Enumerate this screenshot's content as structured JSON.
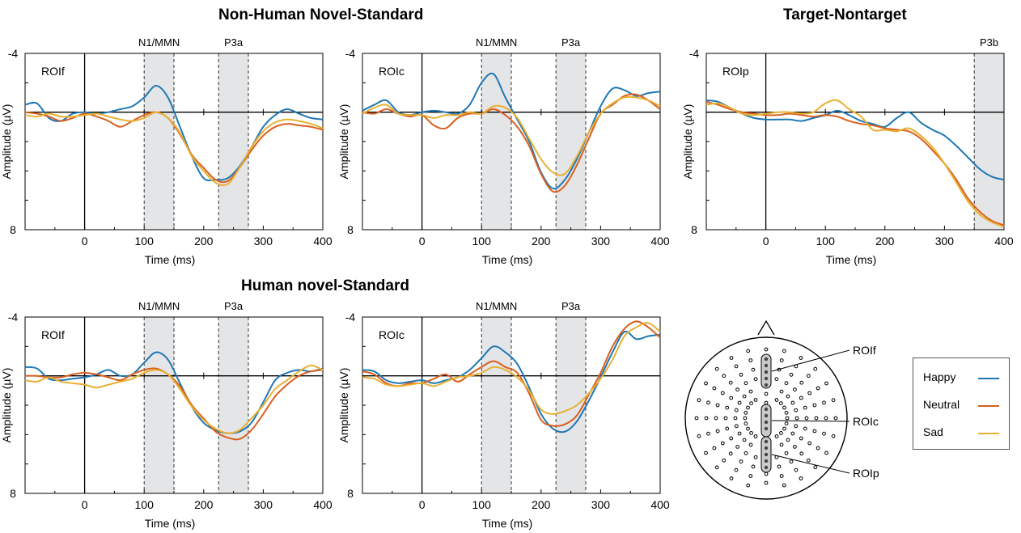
{
  "titles": {
    "nonhuman": "Non-Human Novel-Standard",
    "target": "Target-Nontarget",
    "human": "Human novel-Standard"
  },
  "colors": {
    "Happy": "#1f77b4",
    "Neutral": "#d95f1f",
    "Sad": "#e8b032"
  },
  "legend": [
    {
      "label": "Happy",
      "color": "#1f77b4"
    },
    {
      "label": "Neutral",
      "color": "#d95f1f"
    },
    {
      "label": "Sad",
      "color": "#e8b032"
    }
  ],
  "head": {
    "labels": [
      "ROIf",
      "ROIc",
      "ROIp"
    ]
  },
  "chart_data": [
    {
      "type": "line",
      "group": "Non-Human Novel-Standard",
      "panel_label": "ROIf",
      "xlabel": "Time (ms)",
      "ylabel": "Amplitude (µV)",
      "xlim": [
        -100,
        400
      ],
      "ylim": [
        -4,
        8
      ],
      "y_inverted": true,
      "xticks": [
        "0",
        "100",
        "200",
        "300",
        "400"
      ],
      "yticks": [
        "-4",
        "8"
      ],
      "windows": [
        {
          "label": "N1/MMN",
          "range": [
            100,
            150
          ]
        },
        {
          "label": "P3a",
          "range": [
            225,
            275
          ]
        }
      ],
      "x": [
        -100,
        -80,
        -60,
        -40,
        -20,
        0,
        20,
        40,
        60,
        80,
        100,
        120,
        140,
        160,
        180,
        200,
        220,
        240,
        260,
        280,
        300,
        320,
        340,
        360,
        380,
        400
      ],
      "series": [
        {
          "name": "Happy",
          "values": [
            -0.5,
            -0.6,
            0.4,
            0.6,
            0.1,
            0.0,
            0.1,
            0.0,
            -0.2,
            -0.4,
            -1.0,
            -1.8,
            -1.0,
            1.0,
            3.0,
            4.5,
            4.6,
            4.5,
            3.7,
            2.4,
            1.0,
            0.2,
            -0.2,
            0.1,
            0.4,
            0.5
          ]
        },
        {
          "name": "Neutral",
          "values": [
            0.0,
            0.1,
            0.3,
            0.6,
            0.4,
            0.1,
            0.3,
            0.6,
            1.0,
            0.6,
            0.2,
            0.0,
            0.4,
            1.5,
            2.9,
            3.8,
            4.6,
            4.7,
            3.8,
            2.6,
            1.6,
            1.0,
            0.8,
            0.9,
            1.0,
            1.2
          ]
        },
        {
          "name": "Sad",
          "values": [
            0.2,
            0.3,
            0.1,
            0.3,
            0.3,
            0.2,
            0.1,
            0.3,
            0.5,
            0.6,
            0.4,
            0.0,
            0.4,
            1.4,
            3.0,
            4.0,
            4.8,
            4.9,
            3.8,
            2.4,
            1.3,
            0.7,
            0.5,
            0.6,
            0.8,
            1.1
          ]
        }
      ]
    },
    {
      "type": "line",
      "group": "Non-Human Novel-Standard",
      "panel_label": "ROIc",
      "xlabel": "Time (ms)",
      "ylabel": "Amplitude (µV)",
      "xlim": [
        -100,
        400
      ],
      "ylim": [
        -4,
        8
      ],
      "y_inverted": true,
      "xticks": [
        "0",
        "100",
        "200",
        "300",
        "400"
      ],
      "yticks": [
        "-4",
        "8"
      ],
      "windows": [
        {
          "label": "N1/MMN",
          "range": [
            100,
            150
          ]
        },
        {
          "label": "P3a",
          "range": [
            225,
            275
          ]
        }
      ],
      "x": [
        -100,
        -80,
        -60,
        -40,
        -20,
        0,
        20,
        40,
        60,
        80,
        100,
        120,
        140,
        160,
        180,
        200,
        220,
        240,
        260,
        280,
        300,
        320,
        340,
        360,
        380,
        400
      ],
      "series": [
        {
          "name": "Happy",
          "values": [
            -0.1,
            -0.5,
            -0.8,
            0.0,
            0.2,
            0.0,
            -0.1,
            0.0,
            0.1,
            -0.5,
            -2.0,
            -2.6,
            -1.0,
            0.5,
            2.0,
            4.1,
            5.2,
            4.6,
            3.2,
            1.4,
            -0.4,
            -1.6,
            -1.5,
            -1.1,
            -1.3,
            -1.4
          ]
        },
        {
          "name": "Neutral",
          "values": [
            0.0,
            0.1,
            -0.2,
            0.1,
            0.3,
            0.2,
            0.9,
            1.1,
            0.4,
            0.1,
            0.1,
            -0.2,
            0.2,
            1.0,
            2.3,
            4.2,
            5.4,
            5.0,
            3.6,
            1.8,
            0.1,
            -0.5,
            -1.1,
            -1.2,
            -0.8,
            -0.2
          ]
        },
        {
          "name": "Sad",
          "values": [
            0.1,
            -0.3,
            -0.5,
            0.1,
            0.2,
            0.2,
            0.4,
            0.2,
            0.2,
            0.0,
            0.1,
            -0.4,
            -0.3,
            0.4,
            1.8,
            3.2,
            4.1,
            4.2,
            3.0,
            1.4,
            0.1,
            -0.6,
            -1.0,
            -1.0,
            -0.8,
            -0.4
          ]
        }
      ]
    },
    {
      "type": "line",
      "group": "Target-Nontarget",
      "panel_label": "ROIp",
      "xlabel": "Time (ms)",
      "ylabel": "Amplitude (µV)",
      "xlim": [
        -100,
        400
      ],
      "ylim": [
        -4,
        8
      ],
      "y_inverted": true,
      "xticks": [
        "0",
        "100",
        "200",
        "300",
        "400"
      ],
      "yticks": [
        "-4",
        "8"
      ],
      "windows": [
        {
          "label": "P3b",
          "range": [
            350,
            400
          ]
        }
      ],
      "x": [
        -100,
        -80,
        -60,
        -40,
        -20,
        0,
        20,
        40,
        60,
        80,
        100,
        120,
        140,
        160,
        180,
        200,
        220,
        240,
        260,
        280,
        300,
        320,
        340,
        360,
        380,
        400
      ],
      "series": [
        {
          "name": "Happy",
          "values": [
            -0.8,
            -0.7,
            -0.3,
            0.1,
            0.4,
            0.5,
            0.5,
            0.5,
            0.6,
            0.4,
            0.2,
            -0.1,
            0.2,
            0.6,
            0.8,
            1.0,
            0.4,
            0.0,
            0.7,
            1.2,
            1.6,
            2.3,
            3.1,
            3.9,
            4.4,
            4.6
          ]
        },
        {
          "name": "Neutral",
          "values": [
            -0.7,
            -0.5,
            -0.2,
            0.0,
            0.1,
            0.2,
            0.2,
            0.1,
            0.2,
            0.3,
            0.2,
            0.3,
            0.6,
            0.8,
            0.9,
            1.1,
            1.2,
            1.3,
            1.8,
            2.6,
            3.5,
            4.6,
            5.9,
            6.8,
            7.4,
            7.7
          ]
        },
        {
          "name": "Sad",
          "values": [
            -0.5,
            -0.6,
            -0.3,
            0.1,
            0.2,
            0.1,
            0.0,
            0.0,
            0.1,
            0.0,
            -0.6,
            -0.8,
            -0.2,
            0.3,
            1.2,
            1.2,
            1.3,
            1.1,
            1.6,
            2.4,
            3.5,
            4.8,
            6.1,
            7.0,
            7.5,
            7.8
          ]
        }
      ]
    },
    {
      "type": "line",
      "group": "Human novel-Standard",
      "panel_label": "ROIf",
      "xlabel": "Time (ms)",
      "ylabel": "Amplitude (µV)",
      "xlim": [
        -100,
        400
      ],
      "ylim": [
        -4,
        8
      ],
      "y_inverted": true,
      "xticks": [
        "0",
        "100",
        "200",
        "300",
        "400"
      ],
      "yticks": [
        "-4",
        "8"
      ],
      "windows": [
        {
          "label": "N1/MMN",
          "range": [
            100,
            150
          ]
        },
        {
          "label": "P3a",
          "range": [
            225,
            275
          ]
        }
      ],
      "x": [
        -100,
        -80,
        -60,
        -40,
        -20,
        0,
        20,
        40,
        60,
        80,
        100,
        120,
        140,
        160,
        180,
        200,
        220,
        240,
        260,
        280,
        300,
        320,
        340,
        360,
        380,
        400
      ],
      "series": [
        {
          "name": "Happy",
          "values": [
            -0.6,
            -0.5,
            0.2,
            0.3,
            0.2,
            0.1,
            -0.1,
            -0.4,
            0.0,
            -0.1,
            -0.9,
            -1.6,
            -1.1,
            0.5,
            2.1,
            3.2,
            3.7,
            3.9,
            3.8,
            3.2,
            1.8,
            0.3,
            -0.2,
            -0.4,
            -0.3,
            -0.5
          ]
        },
        {
          "name": "Neutral",
          "values": [
            0.0,
            0.0,
            0.1,
            0.1,
            -0.1,
            -0.2,
            -0.1,
            0.1,
            0.3,
            -0.1,
            -0.4,
            -0.5,
            -0.1,
            0.7,
            2.0,
            2.9,
            3.8,
            4.2,
            4.3,
            3.7,
            2.6,
            1.4,
            0.6,
            0.0,
            -0.3,
            -0.4
          ]
        },
        {
          "name": "Sad",
          "values": [
            0.3,
            0.4,
            0.1,
            0.4,
            0.5,
            0.6,
            0.8,
            0.6,
            0.4,
            0.2,
            -0.2,
            -0.4,
            -0.1,
            0.9,
            2.1,
            3.0,
            3.6,
            3.9,
            3.7,
            2.9,
            2.0,
            0.9,
            0.3,
            -0.3,
            -0.7,
            -0.4
          ]
        }
      ]
    },
    {
      "type": "line",
      "group": "Human novel-Standard",
      "panel_label": "ROIc",
      "xlabel": "Time (ms)",
      "ylabel": "Amplitude (µV)",
      "xlim": [
        -100,
        400
      ],
      "ylim": [
        -4,
        8
      ],
      "y_inverted": true,
      "xticks": [
        "0",
        "100",
        "200",
        "300",
        "400"
      ],
      "yticks": [
        "-4",
        "8"
      ],
      "windows": [
        {
          "label": "N1/MMN",
          "range": [
            100,
            150
          ]
        },
        {
          "label": "P3a",
          "range": [
            225,
            275
          ]
        }
      ],
      "x": [
        -100,
        -80,
        -60,
        -40,
        -20,
        0,
        20,
        40,
        60,
        80,
        100,
        120,
        140,
        160,
        180,
        200,
        220,
        240,
        260,
        280,
        300,
        320,
        340,
        360,
        380,
        400
      ],
      "series": [
        {
          "name": "Happy",
          "values": [
            -0.4,
            -0.3,
            0.3,
            0.5,
            0.4,
            0.3,
            0.5,
            0.3,
            0.1,
            -0.4,
            -1.2,
            -2.0,
            -1.6,
            -0.8,
            0.8,
            2.6,
            3.6,
            3.8,
            3.1,
            1.7,
            0.1,
            -1.6,
            -3.0,
            -2.5,
            -2.7,
            -2.8
          ]
        },
        {
          "name": "Neutral",
          "values": [
            -0.3,
            -0.1,
            0.5,
            0.7,
            0.5,
            0.5,
            0.2,
            -0.1,
            0.4,
            -0.1,
            -0.6,
            -1.0,
            -0.6,
            -0.2,
            1.2,
            3.0,
            3.4,
            3.3,
            2.7,
            1.3,
            -0.2,
            -2.0,
            -3.2,
            -3.7,
            -3.3,
            -2.6
          ]
        },
        {
          "name": "Sad",
          "values": [
            0.1,
            0.2,
            0.6,
            0.7,
            0.6,
            0.5,
            0.7,
            0.4,
            0.1,
            0.0,
            -0.2,
            -0.6,
            -0.4,
            0.1,
            1.0,
            2.3,
            2.6,
            2.4,
            2.0,
            1.2,
            0.2,
            -1.1,
            -2.7,
            -3.3,
            -3.6,
            -3.0
          ]
        }
      ]
    }
  ]
}
